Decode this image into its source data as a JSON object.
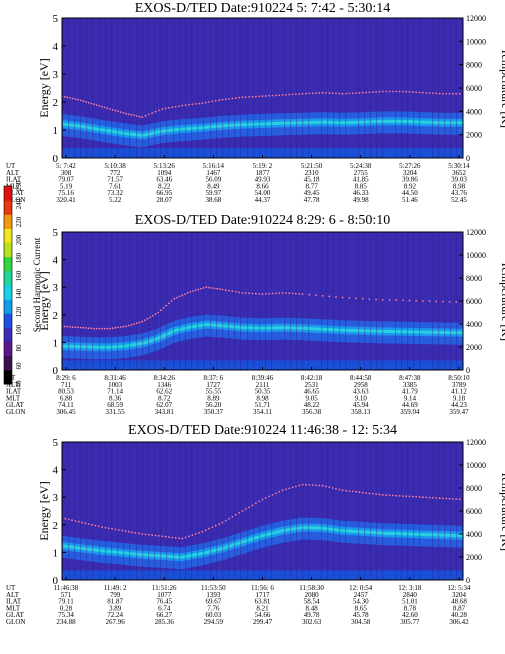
{
  "chart_data": [
    {
      "type": "heatmap",
      "title": "EXOS-D/TED   Date:910224   5: 7:42 - 5:30:14",
      "ylabel": "Energy [eV]",
      "y2label": "Temperature [K]",
      "ylim": [
        0,
        5
      ],
      "y2lim": [
        0,
        12000
      ],
      "yticks": [
        "0",
        "1",
        "2",
        "3",
        "4",
        "5"
      ],
      "y2ticks": [
        "0",
        "2000",
        "4000",
        "6000",
        "8000",
        "10000",
        "12000"
      ],
      "temperature_series": {
        "name": "",
        "x": [
          0,
          0.04,
          0.08,
          0.12,
          0.16,
          0.2,
          0.25,
          0.3,
          0.35,
          0.4,
          0.45,
          0.5,
          0.55,
          0.6,
          0.65,
          0.7,
          0.75,
          0.8,
          0.85,
          0.9,
          0.95,
          1.0
        ],
        "y": [
          5300,
          5000,
          4600,
          4200,
          3800,
          3500,
          4200,
          4500,
          4700,
          5000,
          5200,
          5300,
          5400,
          5500,
          5600,
          5500,
          5600,
          5700,
          5700,
          5600,
          5500,
          5500
        ]
      },
      "orbit_table": {
        "row_labels": [
          "UT",
          "ALT",
          "ILAT",
          "MLT",
          "GLAT",
          "GLON"
        ],
        "columns": [
          [
            "5: 7:42",
            "308",
            "79.07",
            "5.19",
            "75.16",
            "320.41"
          ],
          [
            "5:10:38",
            "772",
            "71.57",
            "7.61",
            "73.32",
            "5.22"
          ],
          [
            "5:13:26",
            "1094",
            "63.46",
            "8.22",
            "66.95",
            "28.07"
          ],
          [
            "5:16:14",
            "1467",
            "56.09",
            "8.49",
            "59.97",
            "38.68"
          ],
          [
            "5:19: 2",
            "1877",
            "49.93",
            "8.66",
            "54.00",
            "44.37"
          ],
          [
            "5:21:50",
            "2310",
            "45.18",
            "8.77",
            "49.45",
            "47.78"
          ],
          [
            "5:24:38",
            "2755",
            "41.85",
            "8.85",
            "46.33",
            "49.98"
          ],
          [
            "5:27:26",
            "3204",
            "39.86",
            "8.92",
            "44.50",
            "51.46"
          ],
          [
            "5:30:14",
            "3652",
            "39.03",
            "8.98",
            "43.76",
            "52.45"
          ]
        ]
      }
    },
    {
      "type": "heatmap",
      "title": "EXOS-D/TED   Date:910224   8:29: 6 - 8:50:10",
      "ylabel": "Energy [eV]",
      "y2label": "Temperature [K]",
      "ylim": [
        0,
        5
      ],
      "y2lim": [
        0,
        12000
      ],
      "yticks": [
        "0",
        "1",
        "2",
        "3",
        "4",
        "5"
      ],
      "y2ticks": [
        "0",
        "2000",
        "4000",
        "6000",
        "8000",
        "10000",
        "12000"
      ],
      "temperature_series": {
        "name": "",
        "x": [
          0,
          0.04,
          0.08,
          0.12,
          0.16,
          0.2,
          0.24,
          0.28,
          0.32,
          0.36,
          0.4,
          0.45,
          0.5,
          0.55,
          0.6,
          0.7,
          0.8,
          0.9,
          1.0
        ],
        "y": [
          3800,
          3700,
          3600,
          3600,
          3800,
          4200,
          5000,
          6200,
          6800,
          7200,
          7000,
          6700,
          6600,
          6700,
          6600,
          6300,
          6100,
          6000,
          5900
        ]
      },
      "orbit_table": {
        "row_labels": [
          "UT",
          "ALT",
          "ILAT",
          "MLT",
          "GLAT",
          "GLON"
        ],
        "columns": [
          [
            "8:29: 6",
            "711",
            "80.53",
            "6.88",
            "74.11",
            "306.45"
          ],
          [
            "8:31:46",
            "1003",
            "71.14",
            "8.36",
            "68.59",
            "331.55"
          ],
          [
            "8:34:26",
            "1346",
            "62.62",
            "8.72",
            "62.07",
            "343.81"
          ],
          [
            "8:37: 6",
            "1727",
            "55.55",
            "8.89",
            "56.20",
            "350.37"
          ],
          [
            "8:39:46",
            "2111",
            "50.35",
            "8.98",
            "51.71",
            "354.11"
          ],
          [
            "8:42:18",
            "2531",
            "46.65",
            "9.05",
            "48.22",
            "356.38"
          ],
          [
            "8:44:58",
            "2958",
            "43.63",
            "9.10",
            "45.94",
            "358.13"
          ],
          [
            "8:47:38",
            "3385",
            "41.79",
            "9.14",
            "44.69",
            "359.04"
          ],
          [
            "8:50:10",
            "3789",
            "41.12",
            "9.18",
            "44.23",
            "359.47"
          ]
        ]
      }
    },
    {
      "type": "heatmap",
      "title": "EXOS-D/TED   Date:910224   11:46:38 - 12: 5:34",
      "ylabel": "Energy [eV]",
      "y2label": "Temperature [K]",
      "ylim": [
        0,
        5
      ],
      "y2lim": [
        0,
        12000
      ],
      "yticks": [
        "0",
        "1",
        "2",
        "3",
        "4",
        "5"
      ],
      "y2ticks": [
        "0",
        "2000",
        "4000",
        "6000",
        "8000",
        "10000",
        "12000"
      ],
      "temperature_series": {
        "name": "",
        "x": [
          0,
          0.05,
          0.1,
          0.15,
          0.2,
          0.25,
          0.3,
          0.35,
          0.4,
          0.45,
          0.5,
          0.55,
          0.6,
          0.65,
          0.7,
          0.75,
          0.8,
          0.85,
          0.9,
          0.95,
          1.0
        ],
        "y": [
          5400,
          5000,
          4600,
          4300,
          4000,
          3800,
          3600,
          4200,
          5000,
          6000,
          7000,
          7800,
          8300,
          8200,
          7800,
          7600,
          7400,
          7300,
          7200,
          7100,
          7000
        ]
      },
      "orbit_table": {
        "row_labels": [
          "UT",
          "ALT",
          "ILAT",
          "MLT",
          "GLAT",
          "GLON"
        ],
        "columns": [
          [
            "11:46:38",
            "571",
            "79.11",
            "0.28",
            "75.34",
            "234.88"
          ],
          [
            "11:49: 2",
            "799",
            "81.87",
            "3.89",
            "72.24",
            "267.96"
          ],
          [
            "11:51:26",
            "1077",
            "76.45",
            "6.74",
            "66.27",
            "285.36"
          ],
          [
            "11:53:50",
            "1393",
            "69.67",
            "7.76",
            "60.03",
            "294.59"
          ],
          [
            "11:56: 6",
            "1717",
            "63.81",
            "8.21",
            "54.66",
            "299.47"
          ],
          [
            "11:58:30",
            "2080",
            "58.54",
            "8.48",
            "49.78",
            "302.63"
          ],
          [
            "12: 0:54",
            "2457",
            "54.30",
            "8.65",
            "45.78",
            "304.58"
          ],
          [
            "12: 3:18",
            "2840",
            "51.01",
            "8.78",
            "42.60",
            "305.77"
          ],
          [
            "12: 5:34",
            "3204",
            "48.68",
            "8.87",
            "40.28",
            "306.42"
          ]
        ]
      }
    }
  ],
  "colorbar": {
    "label": "Second Harmonic Current",
    "ticks": [
      "40",
      "60",
      "80",
      "100",
      "120",
      "140",
      "160",
      "180",
      "200",
      "220",
      "240",
      "250"
    ],
    "colors": [
      "#000000",
      "#3d0f4e",
      "#5a188a",
      "#3b2bb8",
      "#1e4fe0",
      "#0ea0ef",
      "#18d2e8",
      "#20d89a",
      "#33d640",
      "#b8e21c",
      "#f3e51c",
      "#f39a10",
      "#e83a10",
      "#e01010"
    ]
  },
  "colors": {
    "background": "#3a2bb0",
    "high": "#1c9fef",
    "peak": "#29d7e0",
    "temperature_dots": "#ff7a9c"
  }
}
